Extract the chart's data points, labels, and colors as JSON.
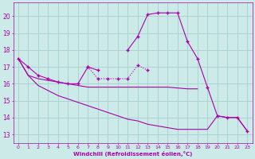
{
  "background_color": "#cceae7",
  "grid_color": "#aad4d0",
  "line_color": "#aa00aa",
  "xlim": [
    -0.5,
    23.5
  ],
  "ylim": [
    12.5,
    20.8
  ],
  "yticks": [
    13,
    14,
    15,
    16,
    17,
    18,
    19,
    20
  ],
  "xticks": [
    0,
    1,
    2,
    3,
    4,
    5,
    6,
    7,
    8,
    9,
    10,
    11,
    12,
    13,
    14,
    15,
    16,
    17,
    18,
    19,
    20,
    21,
    22,
    23
  ],
  "xlabel": "Windchill (Refroidissement éolien,°C)",
  "series1_x": [
    0,
    1,
    2,
    3,
    4,
    5,
    6,
    7,
    8
  ],
  "series1_y": [
    17.5,
    17.0,
    16.5,
    16.3,
    16.1,
    16.0,
    16.0,
    17.0,
    16.8
  ],
  "series2_x": [
    7,
    8,
    9,
    10,
    11,
    12,
    13
  ],
  "series2_y": [
    17.0,
    16.3,
    16.3,
    16.3,
    16.3,
    17.1,
    16.8
  ],
  "series3_x": [
    0,
    1,
    2,
    3,
    4,
    5,
    6,
    7,
    8,
    9,
    10,
    11,
    12,
    13,
    14,
    15,
    16,
    17,
    18
  ],
  "series3_y": [
    17.5,
    16.5,
    16.3,
    16.2,
    16.1,
    16.0,
    15.9,
    15.8,
    15.8,
    15.8,
    15.8,
    15.8,
    15.8,
    15.8,
    15.8,
    15.8,
    15.75,
    15.7,
    15.7
  ],
  "series4_x": [
    11,
    12,
    13,
    14,
    15,
    16,
    17,
    18,
    19,
    20,
    21,
    22,
    23
  ],
  "series4_y": [
    18.0,
    18.8,
    20.1,
    20.2,
    20.2,
    20.2,
    18.5,
    17.5,
    15.8,
    14.1,
    14.0,
    14.0,
    13.2
  ],
  "series5_x": [
    0,
    1,
    2,
    3,
    4,
    5,
    6,
    7,
    8,
    9,
    10,
    11,
    12,
    13,
    14,
    15,
    16,
    17,
    18,
    19,
    20,
    21,
    22,
    23
  ],
  "series5_y": [
    17.5,
    16.5,
    15.9,
    15.6,
    15.3,
    15.1,
    14.9,
    14.7,
    14.5,
    14.3,
    14.1,
    13.9,
    13.8,
    13.6,
    13.5,
    13.4,
    13.3,
    13.3,
    13.3,
    13.3,
    14.1,
    14.0,
    14.0,
    13.2
  ]
}
